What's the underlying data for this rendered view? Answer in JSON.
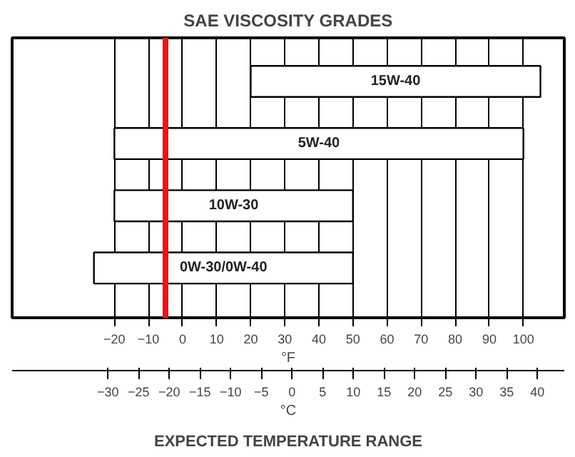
{
  "chart_data": {
    "type": "bar",
    "orientation": "horizontal",
    "title": "SAE VISCOSITY GRADES",
    "categories": [
      "15W-40",
      "5W-40",
      "10W-30",
      "0W-30/0W-40"
    ],
    "base": [
      20,
      -20,
      -20,
      -26
    ],
    "values": [
      85,
      120,
      70,
      76
    ],
    "color": "#ffffff",
    "xlabel": "°F",
    "x2label": "°C",
    "xlim": [
      -50,
      112
    ],
    "xticks": [
      -20,
      -10,
      0,
      10,
      20,
      30,
      40,
      50,
      60,
      70,
      80,
      90,
      100
    ],
    "x2lim": [
      -45.6,
      44.4
    ],
    "x2ticks": [
      -30,
      -25,
      -20,
      -15,
      -10,
      -5,
      0,
      5,
      10,
      15,
      20,
      25,
      30,
      35,
      40
    ],
    "grid": "x",
    "ref_lines": [
      {
        "axis": "x",
        "value": -5,
        "color": "#e01a1a"
      }
    ],
    "annotations": [
      "EXPECTED TEMPERATURE RANGE"
    ]
  }
}
